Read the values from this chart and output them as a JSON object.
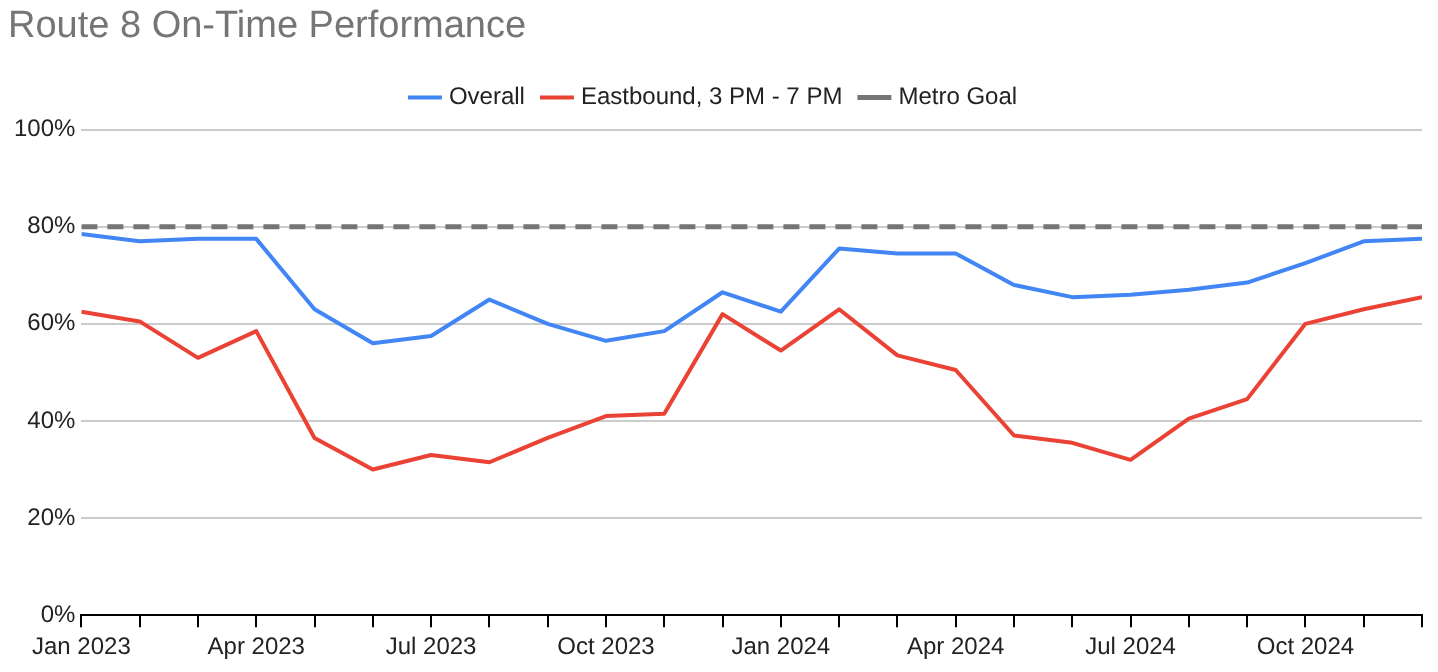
{
  "chart_data": {
    "type": "line",
    "title": "Route 8 On-Time Performance",
    "x": [
      "2023-01",
      "2023-02",
      "2023-03",
      "2023-04",
      "2023-05",
      "2023-06",
      "2023-07",
      "2023-08",
      "2023-09",
      "2023-10",
      "2023-11",
      "2023-12",
      "2024-01",
      "2024-02",
      "2024-03",
      "2024-04",
      "2024-05",
      "2024-06",
      "2024-07",
      "2024-08",
      "2024-09",
      "2024-10",
      "2024-11",
      "2024-12"
    ],
    "series": [
      {
        "name": "Overall",
        "color": "#4285f4",
        "values": [
          78.5,
          77,
          77.5,
          77.5,
          63,
          56,
          57.5,
          65,
          60,
          56.5,
          58.5,
          66.5,
          62.5,
          75.5,
          74.5,
          74.5,
          68,
          65.5,
          66,
          67,
          68.5,
          72.5,
          77,
          77.5
        ]
      },
      {
        "name": "Eastbound, 3 PM - 7 PM",
        "color": "#ea4335",
        "values": [
          62.5,
          60.5,
          53,
          58.5,
          36.5,
          30,
          33,
          31.5,
          36.5,
          41,
          41.5,
          62,
          54.5,
          63,
          53.5,
          50.5,
          37,
          35.5,
          32,
          40.5,
          44.5,
          60,
          63,
          65.5
        ]
      }
    ],
    "ref_lines": [
      {
        "axis": "y",
        "value": 80,
        "label": "Metro Goal",
        "color": "#757575",
        "line_style": "dashed"
      }
    ],
    "xlim": [
      "2023-01",
      "2024-12"
    ],
    "xticks": [
      {
        "value": "2023-01",
        "label": "Jan 2023"
      },
      {
        "value": "2023-02",
        "label": null
      },
      {
        "value": "2023-03",
        "label": null
      },
      {
        "value": "2023-04",
        "label": "Apr 2023"
      },
      {
        "value": "2023-05",
        "label": null
      },
      {
        "value": "2023-06",
        "label": null
      },
      {
        "value": "2023-07",
        "label": "Jul 2023"
      },
      {
        "value": "2023-08",
        "label": null
      },
      {
        "value": "2023-09",
        "label": null
      },
      {
        "value": "2023-10",
        "label": "Oct 2023"
      },
      {
        "value": "2023-11",
        "label": null
      },
      {
        "value": "2023-12",
        "label": null
      },
      {
        "value": "2024-01",
        "label": "Jan 2024"
      },
      {
        "value": "2024-02",
        "label": null
      },
      {
        "value": "2024-03",
        "label": null
      },
      {
        "value": "2024-04",
        "label": "Apr 2024"
      },
      {
        "value": "2024-05",
        "label": null
      },
      {
        "value": "2024-06",
        "label": null
      },
      {
        "value": "2024-07",
        "label": "Jul 2024"
      },
      {
        "value": "2024-08",
        "label": null
      },
      {
        "value": "2024-09",
        "label": null
      },
      {
        "value": "2024-10",
        "label": "Oct 2024"
      },
      {
        "value": "2024-11",
        "label": null
      },
      {
        "value": "2024-12",
        "label": null
      }
    ],
    "ylim": [
      0,
      100
    ],
    "yticks": [
      {
        "value": 0,
        "label": "0%"
      },
      {
        "value": 20,
        "label": "20%"
      },
      {
        "value": 40,
        "label": "40%"
      },
      {
        "value": 60,
        "label": "60%"
      },
      {
        "value": 80,
        "label": "80%"
      },
      {
        "value": 100,
        "label": "100%"
      }
    ],
    "grid": "y",
    "legend": "top",
    "marker": "none",
    "line_style": "solid"
  }
}
